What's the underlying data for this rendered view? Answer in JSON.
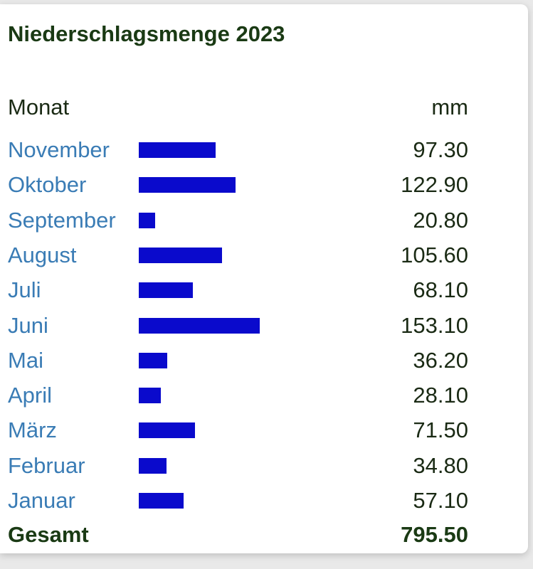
{
  "title": "Niederschlagsmenge 2023",
  "header": {
    "month_label": "Monat",
    "unit_label": "mm"
  },
  "colors": {
    "bar": "#0a0acc",
    "month_link": "#3a7cb5",
    "text": "#1a2a14"
  },
  "chart_data": {
    "type": "bar",
    "orientation": "horizontal",
    "title": "Niederschlagsmenge 2023",
    "xlabel": "mm",
    "ylabel": "Monat",
    "categories": [
      "November",
      "Oktober",
      "September",
      "August",
      "Juli",
      "Juni",
      "Mai",
      "April",
      "März",
      "Februar",
      "Januar"
    ],
    "values": [
      97.3,
      122.9,
      20.8,
      105.6,
      68.1,
      153.1,
      36.2,
      28.1,
      71.5,
      34.8,
      57.1
    ],
    "value_labels": [
      "97.30",
      "122.90",
      "20.80",
      "105.60",
      "68.10",
      "153.10",
      "36.20",
      "28.10",
      "71.50",
      "34.80",
      "57.10"
    ],
    "xlim": [
      0,
      153.1
    ],
    "grid": false,
    "total_label": "Gesamt",
    "total_value": "795.50"
  }
}
